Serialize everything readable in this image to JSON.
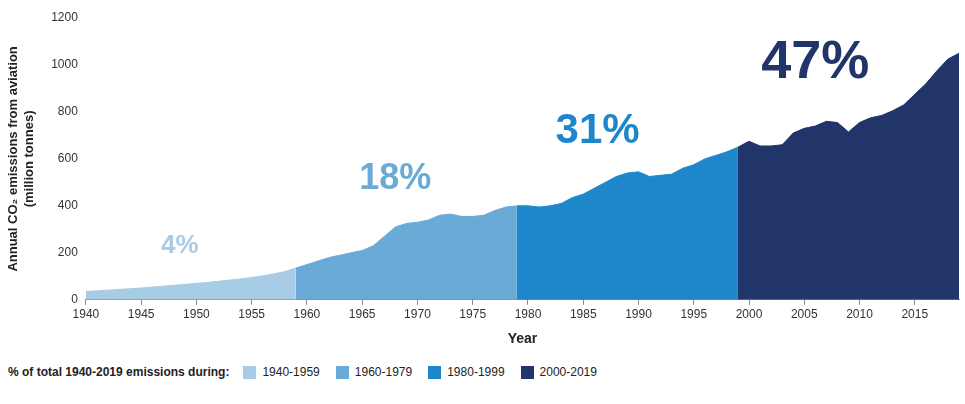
{
  "chart_data": {
    "type": "area",
    "x_label": "Year",
    "y_label": [
      "Annual CO₂ emissions from aviation",
      "(million tonnes)"
    ],
    "x": [
      1940,
      1941,
      1942,
      1943,
      1944,
      1945,
      1946,
      1947,
      1948,
      1949,
      1950,
      1951,
      1952,
      1953,
      1954,
      1955,
      1956,
      1957,
      1958,
      1959,
      1960,
      1961,
      1962,
      1963,
      1964,
      1965,
      1966,
      1967,
      1968,
      1969,
      1970,
      1971,
      1972,
      1973,
      1974,
      1975,
      1976,
      1977,
      1978,
      1979,
      1980,
      1981,
      1982,
      1983,
      1984,
      1985,
      1986,
      1987,
      1988,
      1989,
      1990,
      1991,
      1992,
      1993,
      1994,
      1995,
      1996,
      1997,
      1998,
      1999,
      2000,
      2001,
      2002,
      2003,
      2004,
      2005,
      2006,
      2007,
      2008,
      2009,
      2010,
      2011,
      2012,
      2013,
      2014,
      2015,
      2016,
      2017,
      2018,
      2019
    ],
    "xlim": [
      1940,
      2019
    ],
    "xticks": [
      1940,
      1945,
      1950,
      1955,
      1960,
      1965,
      1970,
      1975,
      1980,
      1985,
      1990,
      1995,
      2000,
      2005,
      2010,
      2015
    ],
    "ylim": [
      0,
      1200
    ],
    "yticks": [
      0,
      200,
      400,
      600,
      800,
      1000,
      1200
    ],
    "grid": false,
    "legend": "bottom",
    "legend_title": "% of total 1940-2019 emissions during:",
    "series": [
      {
        "name": "1940-1959",
        "color": "#a8cbe6",
        "values": [
          35,
          38,
          41,
          44,
          47,
          50,
          54,
          58,
          62,
          66,
          70,
          74,
          79,
          84,
          89,
          95,
          102,
          110,
          120,
          135,
          null,
          null,
          null,
          null,
          null,
          null,
          null,
          null,
          null,
          null,
          null,
          null,
          null,
          null,
          null,
          null,
          null,
          null,
          null,
          null,
          null,
          null,
          null,
          null,
          null,
          null,
          null,
          null,
          null,
          null,
          null,
          null,
          null,
          null,
          null,
          null,
          null,
          null,
          null,
          null,
          null,
          null,
          null,
          null,
          null,
          null,
          null,
          null,
          null,
          null,
          null,
          null,
          null,
          null,
          null,
          null,
          null,
          null,
          null,
          null
        ]
      },
      {
        "name": "1960-1979",
        "color": "#6aaad6",
        "values": [
          null,
          null,
          null,
          null,
          null,
          null,
          null,
          null,
          null,
          null,
          null,
          null,
          null,
          null,
          null,
          null,
          null,
          null,
          null,
          135,
          150,
          165,
          180,
          190,
          200,
          210,
          230,
          270,
          310,
          325,
          330,
          340,
          360,
          365,
          355,
          355,
          360,
          380,
          395,
          400,
          null,
          null,
          null,
          null,
          null,
          null,
          null,
          null,
          null,
          null,
          null,
          null,
          null,
          null,
          null,
          null,
          null,
          null,
          null,
          null,
          null,
          null,
          null,
          null,
          null,
          null,
          null,
          null,
          null,
          null,
          null,
          null,
          null,
          null,
          null,
          null,
          null,
          null,
          null,
          null
        ]
      },
      {
        "name": "1980-1999",
        "color": "#1e87cc",
        "values": [
          null,
          null,
          null,
          null,
          null,
          null,
          null,
          null,
          null,
          null,
          null,
          null,
          null,
          null,
          null,
          null,
          null,
          null,
          null,
          null,
          null,
          null,
          null,
          null,
          null,
          null,
          null,
          null,
          null,
          null,
          null,
          null,
          null,
          null,
          null,
          null,
          null,
          null,
          null,
          400,
          400,
          395,
          400,
          410,
          435,
          450,
          475,
          500,
          525,
          540,
          545,
          525,
          530,
          535,
          560,
          575,
          600,
          615,
          630,
          650,
          null,
          null,
          null,
          null,
          null,
          null,
          null,
          null,
          null,
          null,
          null,
          null,
          null,
          null,
          null,
          null,
          null,
          null,
          null,
          null
        ]
      },
      {
        "name": "2000-2019",
        "color": "#22356a",
        "values": [
          null,
          null,
          null,
          null,
          null,
          null,
          null,
          null,
          null,
          null,
          null,
          null,
          null,
          null,
          null,
          null,
          null,
          null,
          null,
          null,
          null,
          null,
          null,
          null,
          null,
          null,
          null,
          null,
          null,
          null,
          null,
          null,
          null,
          null,
          null,
          null,
          null,
          null,
          null,
          null,
          null,
          null,
          null,
          null,
          null,
          null,
          null,
          null,
          null,
          null,
          null,
          null,
          null,
          null,
          null,
          null,
          null,
          null,
          null,
          650,
          675,
          655,
          655,
          660,
          710,
          730,
          740,
          760,
          755,
          715,
          755,
          775,
          785,
          805,
          830,
          875,
          920,
          975,
          1025,
          1050
        ]
      }
    ],
    "annotations": [
      {
        "text": "4%",
        "x": 1948.5,
        "y": 230,
        "color": "#a8cbe6"
      },
      {
        "text": "18%",
        "x": 1968,
        "y": 515,
        "color": "#6aaad6"
      },
      {
        "text": "31%",
        "x": 1986.3,
        "y": 715,
        "color": "#1e87cc"
      },
      {
        "text": "47%",
        "x": 2006,
        "y": 1010,
        "color": "#22356a"
      }
    ]
  }
}
